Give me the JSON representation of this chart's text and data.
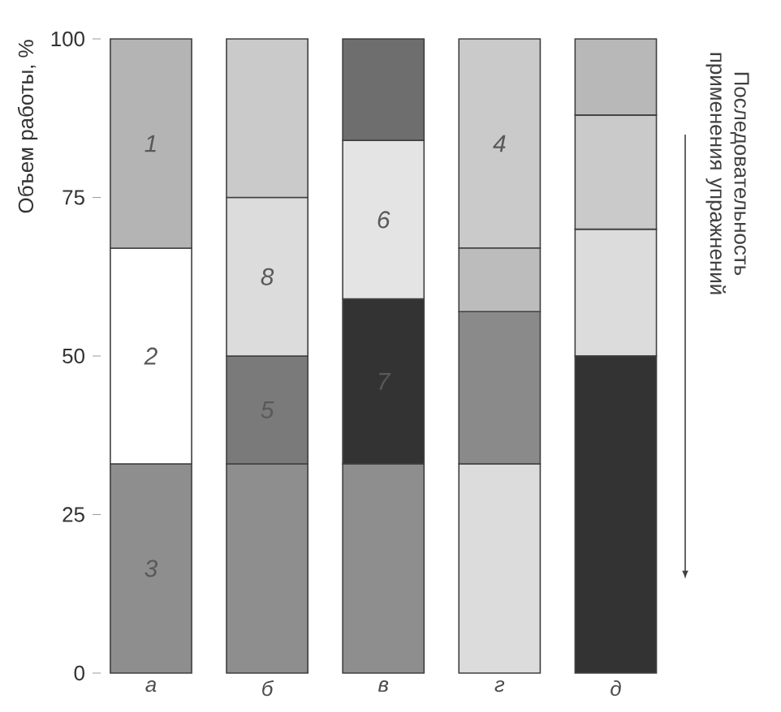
{
  "chart_data": {
    "type": "bar",
    "ylabel": "Объем работы, %",
    "categories": [
      "а",
      "б",
      "в",
      "г",
      "д"
    ],
    "ylim": [
      0,
      100
    ],
    "yticks": [
      0,
      25,
      50,
      75,
      100
    ],
    "series": [
      {
        "name": "3",
        "color": "#8e8e8e",
        "base": [
          0,
          0,
          0,
          null,
          null
        ],
        "values": [
          33,
          33,
          33,
          null,
          null
        ]
      },
      {
        "name": "2",
        "color": "#ffffff",
        "base": [
          33,
          null,
          null,
          null,
          null
        ],
        "values": [
          34,
          null,
          null,
          null,
          null
        ]
      },
      {
        "name": "1",
        "color": "#b4b4b4",
        "base": [
          67,
          null,
          null,
          null,
          null
        ],
        "values": [
          33,
          null,
          null,
          null,
          null
        ]
      },
      {
        "name": "5",
        "color": "#7a7a7a",
        "base": [
          null,
          33,
          null,
          null,
          null
        ],
        "values": [
          null,
          17,
          null,
          null,
          null
        ]
      },
      {
        "name": "8",
        "color": "#dcdcdc",
        "base": [
          null,
          50,
          null,
          0,
          50
        ],
        "values": [
          null,
          25,
          null,
          33,
          20
        ]
      },
      {
        "name": "7",
        "color": "#333333",
        "base": [
          null,
          null,
          33,
          null,
          0
        ],
        "values": [
          null,
          null,
          26,
          null,
          50
        ]
      },
      {
        "name": "6",
        "color": "#e4e4e4",
        "base": [
          null,
          null,
          59,
          null,
          null
        ],
        "values": [
          null,
          null,
          25,
          null,
          null
        ]
      },
      {
        "name": "4",
        "color": "#cacaca",
        "base": [
          null,
          null,
          null,
          67,
          70
        ],
        "values": [
          null,
          null,
          null,
          33,
          18
        ]
      },
      {
        "colors": [
          "#ffffff",
          "#cacaca",
          "#6e6e6e",
          "#8a8a8a",
          "#b8b8b8"
        ],
        "base": [
          null,
          75,
          84,
          33,
          88
        ],
        "values": [
          null,
          25,
          16,
          24,
          12
        ]
      },
      {
        "color": "#bcbcbc",
        "base": [
          null,
          null,
          null,
          57,
          null
        ],
        "values": [
          null,
          null,
          null,
          10,
          null
        ]
      }
    ],
    "annotations": [
      "Последовательность применения упражнений"
    ]
  }
}
